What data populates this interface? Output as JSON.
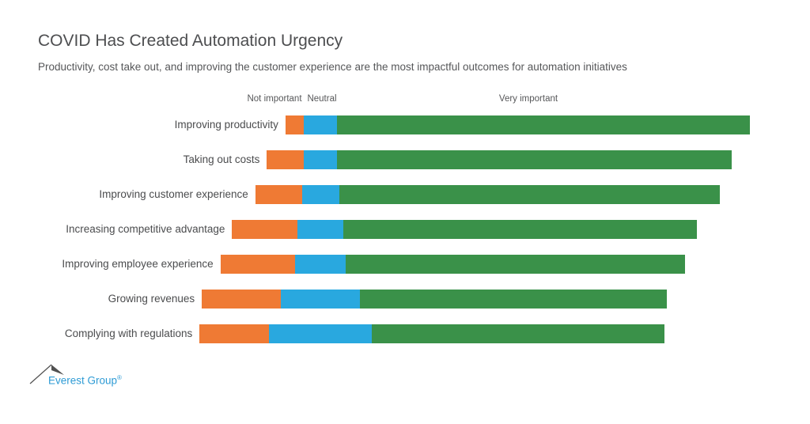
{
  "slide": {
    "title": "COVID Has Created Automation Urgency",
    "subtitle": "Productivity, cost take out, and improving the customer experience are the most impactful outcomes for automation initiatives"
  },
  "logo": {
    "name": "Everest Group",
    "registered": "®"
  },
  "colors": {
    "logo_blue": "#2e9bd5",
    "text_dark": "#4d4e50"
  },
  "chart_data": {
    "type": "bar",
    "variant": "diverging-stacked-horizontal",
    "unit": "percent",
    "title": "COVID Has Created Automation Urgency",
    "subtitle": "Productivity, cost take out, and improving the customer experience are the most impactful outcomes for automation initiatives",
    "legend_position": "top",
    "axis_hidden": true,
    "layout_note": "each bar sums to 100%, neutral segment centered on common axis",
    "categories": [
      "Improving productivity",
      "Taking out costs",
      "Improving customer experience",
      "Increasing competitive advantage",
      "Improving employee experience",
      "Growing revenues",
      "Complying with regulations"
    ],
    "series": [
      {
        "name": "Not important",
        "color": "#ef7a34",
        "values": [
          4,
          8,
          10,
          14,
          16,
          17,
          15
        ]
      },
      {
        "name": "Neutral",
        "color": "#29a8df",
        "values": [
          7,
          7,
          8,
          10,
          11,
          17,
          22
        ]
      },
      {
        "name": "Very important",
        "color": "#3a9149",
        "values": [
          89,
          85,
          82,
          76,
          73,
          66,
          63
        ]
      }
    ]
  }
}
